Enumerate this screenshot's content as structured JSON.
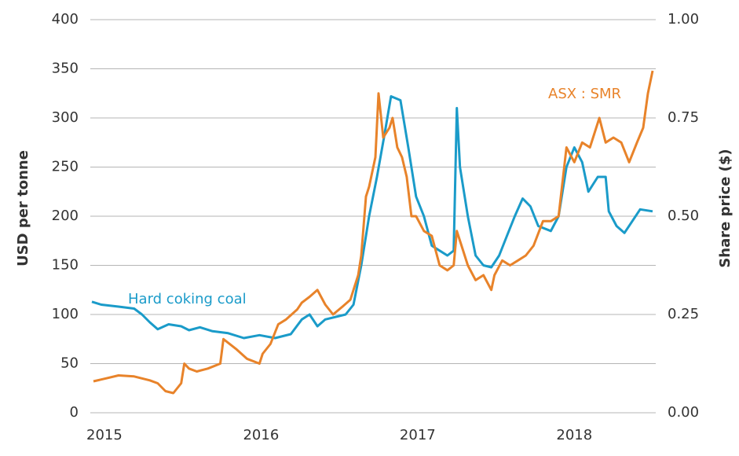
{
  "chart_data": {
    "type": "line",
    "ylabel": "USD per tonne",
    "y2label": "Share price ($)",
    "annotations": [
      "Hard coking coal",
      "ASX : SMR"
    ],
    "xlim": [
      2014.91,
      2018.52
    ],
    "xticks": [
      2015,
      2016,
      2017,
      2018
    ],
    "ylim": [
      0,
      400
    ],
    "yticks": [
      0,
      50,
      100,
      150,
      200,
      250,
      300,
      350,
      400
    ],
    "y2lim": [
      0,
      1
    ],
    "y2ticks": [
      {
        "value": 0,
        "label": "0.00"
      },
      {
        "value": 0.25,
        "label": "0.25"
      },
      {
        "value": 0.5,
        "label": "0.50"
      },
      {
        "value": 0.75,
        "label": "0.75"
      },
      {
        "value": 1,
        "label": "1.00"
      }
    ],
    "grid": true,
    "series": [
      {
        "name": "Hard coking coal",
        "color": "#1a9bc9",
        "axis": "y",
        "x": [
          2014.92,
          2014.98,
          2015.09,
          2015.19,
          2015.24,
          2015.29,
          2015.34,
          2015.41,
          2015.49,
          2015.54,
          2015.61,
          2015.69,
          2015.79,
          2015.89,
          2015.99,
          2016.09,
          2016.19,
          2016.26,
          2016.31,
          2016.36,
          2016.41,
          2016.54,
          2016.59,
          2016.64,
          2016.69,
          2016.74,
          2016.79,
          2016.83,
          2016.89,
          2016.94,
          2016.99,
          2017.04,
          2017.09,
          2017.14,
          2017.19,
          2017.23,
          2017.25,
          2017.27,
          2017.32,
          2017.37,
          2017.42,
          2017.47,
          2017.52,
          2017.57,
          2017.62,
          2017.67,
          2017.72,
          2017.77,
          2017.85,
          2017.9,
          2017.95,
          2018.0,
          2018.05,
          2018.09,
          2018.15,
          2018.2,
          2018.22,
          2018.27,
          2018.32,
          2018.37,
          2018.42,
          2018.5
        ],
        "values": [
          113,
          110,
          108,
          106,
          100,
          92,
          85,
          90,
          88,
          84,
          87,
          83,
          81,
          76,
          79,
          76,
          80,
          95,
          100,
          88,
          95,
          100,
          110,
          150,
          200,
          240,
          285,
          322,
          318,
          270,
          220,
          200,
          170,
          165,
          160,
          165,
          310,
          250,
          200,
          160,
          150,
          148,
          160,
          180,
          200,
          218,
          210,
          190,
          185,
          200,
          250,
          270,
          255,
          225,
          240,
          240,
          205,
          190,
          183,
          195,
          207,
          205
        ]
      },
      {
        "name": "ASX : SMR",
        "color": "#e8832a",
        "axis": "y2",
        "x": [
          2014.93,
          2015.01,
          2015.09,
          2015.19,
          2015.29,
          2015.34,
          2015.39,
          2015.44,
          2015.49,
          2015.51,
          2015.54,
          2015.59,
          2015.66,
          2015.74,
          2015.76,
          2015.84,
          2015.91,
          2015.99,
          2016.01,
          2016.06,
          2016.11,
          2016.16,
          2016.23,
          2016.26,
          2016.31,
          2016.36,
          2016.41,
          2016.46,
          2016.52,
          2016.57,
          2016.62,
          2016.64,
          2016.67,
          2016.69,
          2016.73,
          2016.75,
          2016.78,
          2016.82,
          2016.84,
          2016.87,
          2016.9,
          2016.93,
          2016.96,
          2016.99,
          2017.04,
          2017.09,
          2017.14,
          2017.19,
          2017.23,
          2017.25,
          2017.28,
          2017.32,
          2017.37,
          2017.42,
          2017.47,
          2017.49,
          2017.54,
          2017.59,
          2017.64,
          2017.69,
          2017.74,
          2017.8,
          2017.85,
          2017.9,
          2017.95,
          2018.0,
          2018.05,
          2018.1,
          2018.16,
          2018.2,
          2018.25,
          2018.3,
          2018.35,
          2018.4,
          2018.44,
          2018.47,
          2018.5
        ],
        "values": [
          0.08,
          0.0875,
          0.095,
          0.0925,
          0.0825,
          0.075,
          0.055,
          0.05,
          0.075,
          0.125,
          0.1125,
          0.105,
          0.1125,
          0.125,
          0.1875,
          0.1625,
          0.1375,
          0.125,
          0.15,
          0.175,
          0.225,
          0.2375,
          0.2625,
          0.28,
          0.295,
          0.3125,
          0.275,
          0.25,
          0.27,
          0.2875,
          0.35,
          0.4,
          0.55,
          0.575,
          0.65,
          0.8125,
          0.7,
          0.725,
          0.75,
          0.675,
          0.65,
          0.6,
          0.5,
          0.5,
          0.4625,
          0.45,
          0.375,
          0.3625,
          0.375,
          0.4625,
          0.425,
          0.375,
          0.3375,
          0.35,
          0.3125,
          0.35,
          0.3875,
          0.375,
          0.3875,
          0.4,
          0.425,
          0.4875,
          0.4875,
          0.5,
          0.675,
          0.6375,
          0.6875,
          0.675,
          0.75,
          0.6875,
          0.7,
          0.6875,
          0.6375,
          0.6875,
          0.725,
          0.8125,
          0.87
        ]
      }
    ]
  }
}
